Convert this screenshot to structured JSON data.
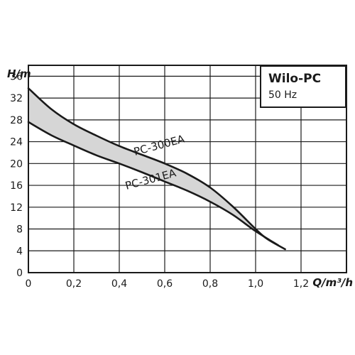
{
  "chart_data": {
    "type": "line",
    "title": "Wilo-PC",
    "subtitle": "50 Hz",
    "xlabel": "Q/m³/h",
    "ylabel": "H/m",
    "xlim": [
      0,
      1.4
    ],
    "ylim": [
      0,
      38
    ],
    "xticks": [
      0,
      0.2,
      0.4,
      0.6,
      0.8,
      1.0,
      1.2
    ],
    "xtick_labels": [
      "0",
      "0,2",
      "0,4",
      "0,6",
      "0,8",
      "1,0",
      "1,2"
    ],
    "yticks": [
      0,
      4,
      8,
      12,
      16,
      20,
      24,
      28,
      32,
      36
    ],
    "ytick_labels": [
      "0",
      "4",
      "8",
      "12",
      "16",
      "20",
      "24",
      "28",
      "32",
      "36"
    ],
    "grid": true,
    "legend_placement": "top-right",
    "fill_between_series": true,
    "series": [
      {
        "name": "PC-300EA",
        "x": [
          0,
          0.1,
          0.2,
          0.3,
          0.4,
          0.5,
          0.6,
          0.7,
          0.8,
          0.9,
          1.0,
          1.05,
          1.13
        ],
        "y": [
          33.8,
          30.0,
          27.2,
          25.1,
          23.2,
          21.6,
          20.0,
          18.1,
          15.6,
          12.1,
          8.0,
          6.2,
          4.3
        ]
      },
      {
        "name": "PC-301EA",
        "x": [
          0,
          0.1,
          0.2,
          0.3,
          0.4,
          0.5,
          0.6,
          0.7,
          0.8,
          0.9,
          1.0,
          1.1
        ],
        "y": [
          27.6,
          25.2,
          23.3,
          21.5,
          20.0,
          18.4,
          16.7,
          15.0,
          13.0,
          10.6,
          7.6,
          5.0
        ]
      }
    ]
  }
}
